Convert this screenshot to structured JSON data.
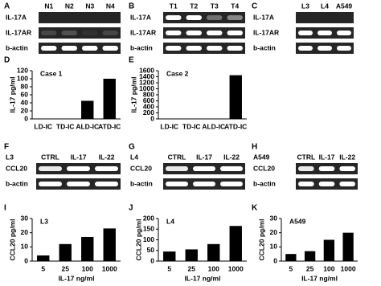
{
  "gels": [
    {
      "panel": "A",
      "lanes": [
        "N1",
        "N2",
        "N3",
        "N4"
      ],
      "rows": [
        "IL-17A",
        "IL-17AR",
        "b-actin"
      ]
    },
    {
      "panel": "B",
      "lanes": [
        "T1",
        "T2",
        "T3",
        "T4"
      ],
      "rows": [
        "IL-17A",
        "IL-17AR",
        "b-actin"
      ]
    },
    {
      "panel": "C",
      "lanes": [
        "L3",
        "L4",
        "A549"
      ],
      "rows": [
        "IL-17A",
        "IL-17AR",
        "b-actin"
      ]
    },
    {
      "panel": "F",
      "cell": "L3",
      "lanes": [
        "CTRL",
        "IL-17",
        "IL-22"
      ],
      "rows": [
        "CCL20",
        "b-actin"
      ]
    },
    {
      "panel": "G",
      "cell": "L4",
      "lanes": [
        "CTRL",
        "IL-17",
        "IL-22"
      ],
      "rows": [
        "CCL20",
        "b-actin"
      ]
    },
    {
      "panel": "H",
      "cell": "A549",
      "lanes": [
        "CTRL",
        "IL-17",
        "IL-22"
      ],
      "rows": [
        "CCL20",
        "b-actin"
      ]
    }
  ],
  "chart_data": [
    {
      "type": "bar",
      "panel": "D",
      "annotation": "Case 1",
      "ylabel": "IL-17 pg/ml",
      "categories": [
        "LD-IC",
        "TD-IC",
        "ALD-IC",
        "ATD-IC"
      ],
      "values": [
        0,
        0,
        45,
        100
      ],
      "color": "#000000",
      "ylim": [
        0,
        120
      ],
      "yticks": [
        0,
        20,
        40,
        60,
        80,
        100,
        120
      ]
    },
    {
      "type": "bar",
      "panel": "E",
      "annotation": "Case 2",
      "ylabel": "IL-17 pg/ml",
      "categories": [
        "LD-IC",
        "TD-IC",
        "ALD-IC",
        "ATD-IC"
      ],
      "values": [
        0,
        0,
        0,
        1450
      ],
      "color": "#000000",
      "ylim": [
        0,
        1600
      ],
      "yticks": [
        0,
        200,
        400,
        600,
        800,
        1000,
        1200,
        1400,
        1600
      ]
    },
    {
      "type": "bar",
      "panel": "I",
      "annotation": "L3",
      "ylabel": "CCL20 pg/ml",
      "xlabel": "IL-17 ng/ml",
      "categories": [
        "5",
        "25",
        "100",
        "1000"
      ],
      "values": [
        4,
        12,
        17,
        23
      ],
      "color": "#000000",
      "ylim": [
        0,
        30
      ],
      "yticks": [
        0,
        10,
        20,
        30
      ]
    },
    {
      "type": "bar",
      "panel": "J",
      "annotation": "L4",
      "ylabel": "CCL20 pg/ml",
      "xlabel": "IL-17 ng/ml",
      "categories": [
        "5",
        "25",
        "100",
        "1000"
      ],
      "values": [
        45,
        55,
        80,
        165
      ],
      "color": "#000000",
      "ylim": [
        0,
        200
      ],
      "yticks": [
        0,
        50,
        100,
        150,
        200
      ]
    },
    {
      "type": "bar",
      "panel": "K",
      "annotation": "A549",
      "ylabel": "CCL20 pg/ml",
      "xlabel": "IL-17 ng/ml",
      "categories": [
        "5",
        "25",
        "100",
        "1000"
      ],
      "values": [
        5,
        7,
        15,
        20
      ],
      "color": "#000000",
      "ylim": [
        0,
        30
      ],
      "yticks": [
        0,
        10,
        20,
        30
      ]
    }
  ]
}
